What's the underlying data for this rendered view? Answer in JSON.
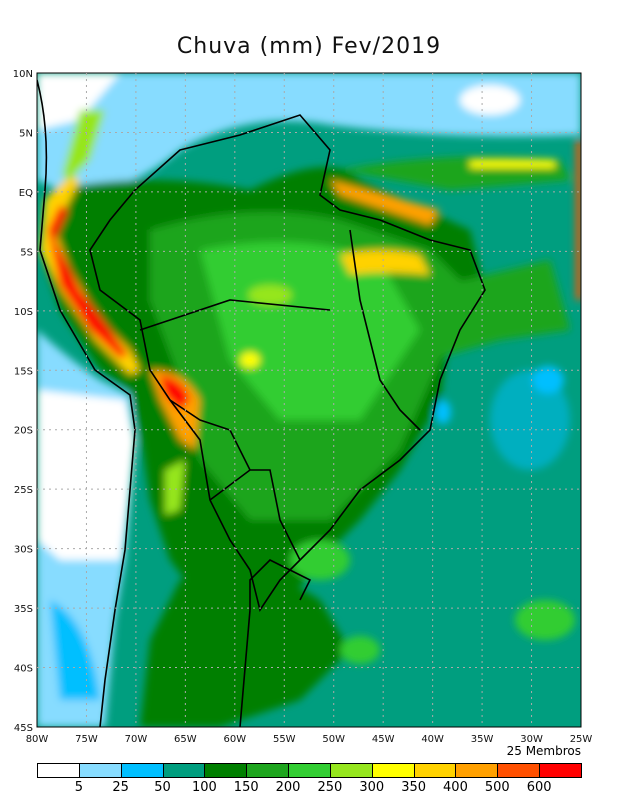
{
  "title": "Chuva (mm) Fev/2019",
  "members_label": "25 Membros",
  "x_ticks": [
    "80W",
    "75W",
    "70W",
    "65W",
    "60W",
    "55W",
    "50W",
    "45W",
    "40W",
    "35W",
    "30W",
    "25W"
  ],
  "y_ticks": [
    "10N",
    "5N",
    "EQ",
    "5S",
    "10S",
    "15S",
    "20S",
    "25S",
    "30S",
    "35S",
    "40S",
    "45S"
  ],
  "colorbar": {
    "colors": [
      "#ffffff",
      "#87dcff",
      "#00bfff",
      "#009e7f",
      "#007f00",
      "#1ea51e",
      "#32cd32",
      "#96e61e",
      "#ffff00",
      "#ffd200",
      "#ffa000",
      "#ff5000",
      "#ff0000"
    ],
    "labels": [
      "5",
      "25",
      "50",
      "100",
      "150",
      "200",
      "250",
      "300",
      "350",
      "400",
      "500",
      "600"
    ]
  },
  "extent": {
    "lon": [
      -80,
      -25
    ],
    "lat": [
      -45,
      10
    ]
  }
}
